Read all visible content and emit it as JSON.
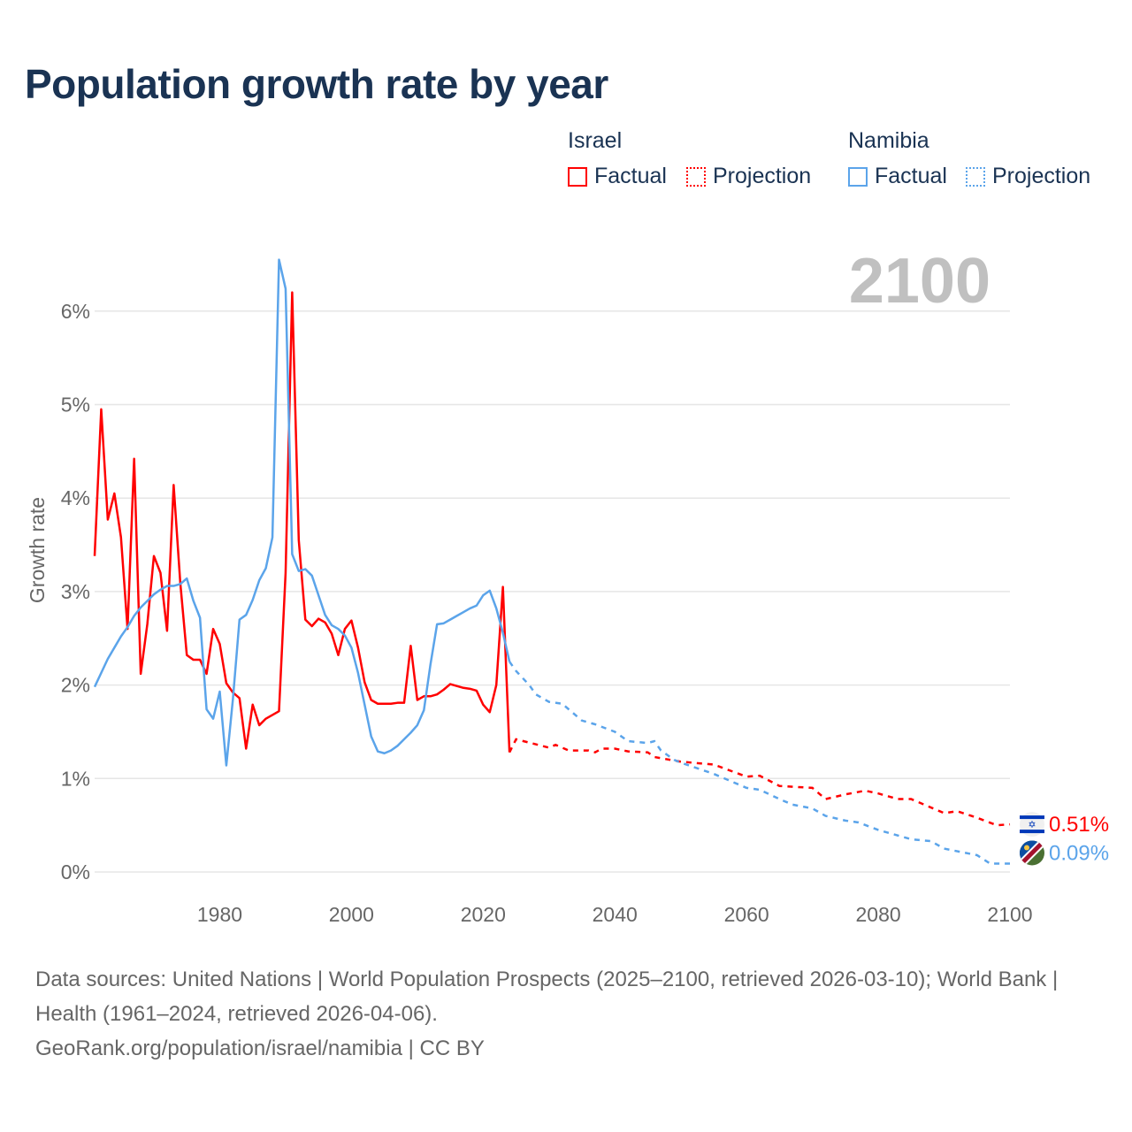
{
  "chart_data": {
    "type": "line",
    "title": "Population growth rate by year",
    "ylabel": "Growth rate",
    "xlabel": "",
    "xlim": [
      1961,
      2100
    ],
    "ylim": [
      0,
      6.7
    ],
    "x_ticks": [
      1980,
      2000,
      2020,
      2040,
      2060,
      2080,
      2100
    ],
    "y_ticks": [
      0,
      1,
      2,
      3,
      4,
      5,
      6
    ],
    "y_tick_labels": [
      "0%",
      "1%",
      "2%",
      "3%",
      "4%",
      "5%",
      "6%"
    ],
    "x_tick_labels": [
      "1980",
      "2000",
      "2020",
      "2040",
      "2060",
      "2080",
      "2100"
    ],
    "grid": true,
    "year_label": "2100",
    "legend": {
      "placement": "top-right",
      "groups": [
        {
          "name": "Israel",
          "factual": "Factual",
          "projection": "Projection"
        },
        {
          "name": "Namibia",
          "factual": "Factual",
          "projection": "Projection"
        }
      ]
    },
    "series": [
      {
        "name": "Israel",
        "color": "#ff0000",
        "end_label": "0.51%",
        "factual_start": 1961,
        "factual": [
          3.38,
          4.95,
          3.77,
          4.05,
          3.58,
          2.6,
          4.42,
          2.12,
          2.65,
          3.38,
          3.2,
          2.58,
          4.14,
          3.1,
          2.32,
          2.27,
          2.27,
          2.12,
          2.6,
          2.44,
          2.02,
          1.92,
          1.86,
          1.32,
          1.79,
          1.57,
          1.64,
          1.68,
          1.72,
          3.2,
          6.2,
          3.55,
          2.7,
          2.63,
          2.71,
          2.67,
          2.55,
          2.32,
          2.6,
          2.69,
          2.4,
          2.03,
          1.84,
          1.8,
          1.8,
          1.8,
          1.81,
          1.81,
          2.42,
          1.84,
          1.88,
          1.88,
          1.9,
          1.95,
          2.01,
          1.99,
          1.97,
          1.96,
          1.94,
          1.79,
          1.71,
          2.0,
          3.05,
          1.28
        ],
        "projection": [
          [
            2024,
            1.28
          ],
          [
            2025,
            1.42
          ],
          [
            2030,
            1.33
          ],
          [
            2031,
            1.36
          ],
          [
            2033,
            1.3
          ],
          [
            2036,
            1.3
          ],
          [
            2037,
            1.28
          ],
          [
            2038,
            1.32
          ],
          [
            2040,
            1.32
          ],
          [
            2042,
            1.29
          ],
          [
            2045,
            1.28
          ],
          [
            2046,
            1.23
          ],
          [
            2050,
            1.18
          ],
          [
            2055,
            1.15
          ],
          [
            2060,
            1.02
          ],
          [
            2062,
            1.03
          ],
          [
            2065,
            0.92
          ],
          [
            2070,
            0.9
          ],
          [
            2072,
            0.78
          ],
          [
            2075,
            0.83
          ],
          [
            2078,
            0.87
          ],
          [
            2080,
            0.84
          ],
          [
            2083,
            0.78
          ],
          [
            2085,
            0.78
          ],
          [
            2090,
            0.63
          ],
          [
            2092,
            0.65
          ],
          [
            2095,
            0.58
          ],
          [
            2098,
            0.5
          ],
          [
            2100,
            0.51
          ]
        ]
      },
      {
        "name": "Namibia",
        "color": "#5ba4ea",
        "end_label": "0.09%",
        "factual_start": 1961,
        "factual": [
          1.98,
          2.13,
          2.28,
          2.4,
          2.52,
          2.62,
          2.74,
          2.83,
          2.9,
          2.97,
          3.02,
          3.06,
          3.06,
          3.08,
          3.14,
          2.9,
          2.72,
          1.74,
          1.64,
          1.93,
          1.14,
          1.85,
          2.7,
          2.75,
          2.91,
          3.12,
          3.25,
          3.58,
          6.55,
          6.24,
          3.4,
          3.22,
          3.24,
          3.17,
          2.96,
          2.75,
          2.64,
          2.6,
          2.53,
          2.4,
          2.13,
          1.79,
          1.45,
          1.29,
          1.27,
          1.3,
          1.35,
          1.42,
          1.49,
          1.57,
          1.73,
          2.22,
          2.65,
          2.66,
          2.7,
          2.74,
          2.78,
          2.82,
          2.85,
          2.96,
          3.01,
          2.82,
          2.56,
          2.25
        ],
        "projection": [
          [
            2024,
            2.25
          ],
          [
            2025,
            2.15
          ],
          [
            2027,
            2.0
          ],
          [
            2028,
            1.9
          ],
          [
            2030,
            1.82
          ],
          [
            2032,
            1.8
          ],
          [
            2035,
            1.62
          ],
          [
            2037,
            1.58
          ],
          [
            2040,
            1.5
          ],
          [
            2042,
            1.4
          ],
          [
            2045,
            1.38
          ],
          [
            2046,
            1.4
          ],
          [
            2047,
            1.3
          ],
          [
            2049,
            1.2
          ],
          [
            2050,
            1.17
          ],
          [
            2055,
            1.05
          ],
          [
            2060,
            0.9
          ],
          [
            2062,
            0.88
          ],
          [
            2065,
            0.78
          ],
          [
            2067,
            0.72
          ],
          [
            2070,
            0.68
          ],
          [
            2072,
            0.6
          ],
          [
            2075,
            0.55
          ],
          [
            2077,
            0.53
          ],
          [
            2080,
            0.45
          ],
          [
            2085,
            0.35
          ],
          [
            2088,
            0.33
          ],
          [
            2090,
            0.25
          ],
          [
            2095,
            0.18
          ],
          [
            2097,
            0.09
          ],
          [
            2100,
            0.09
          ]
        ]
      }
    ]
  },
  "footer": {
    "sources": "Data sources: United Nations | World Population Prospects (2025–2100, retrieved 2026-03-10); World Bank | Health (1961–2024, retrieved 2026-04-06).",
    "credit": "GeoRank.org/population/israel/namibia | CC BY"
  }
}
